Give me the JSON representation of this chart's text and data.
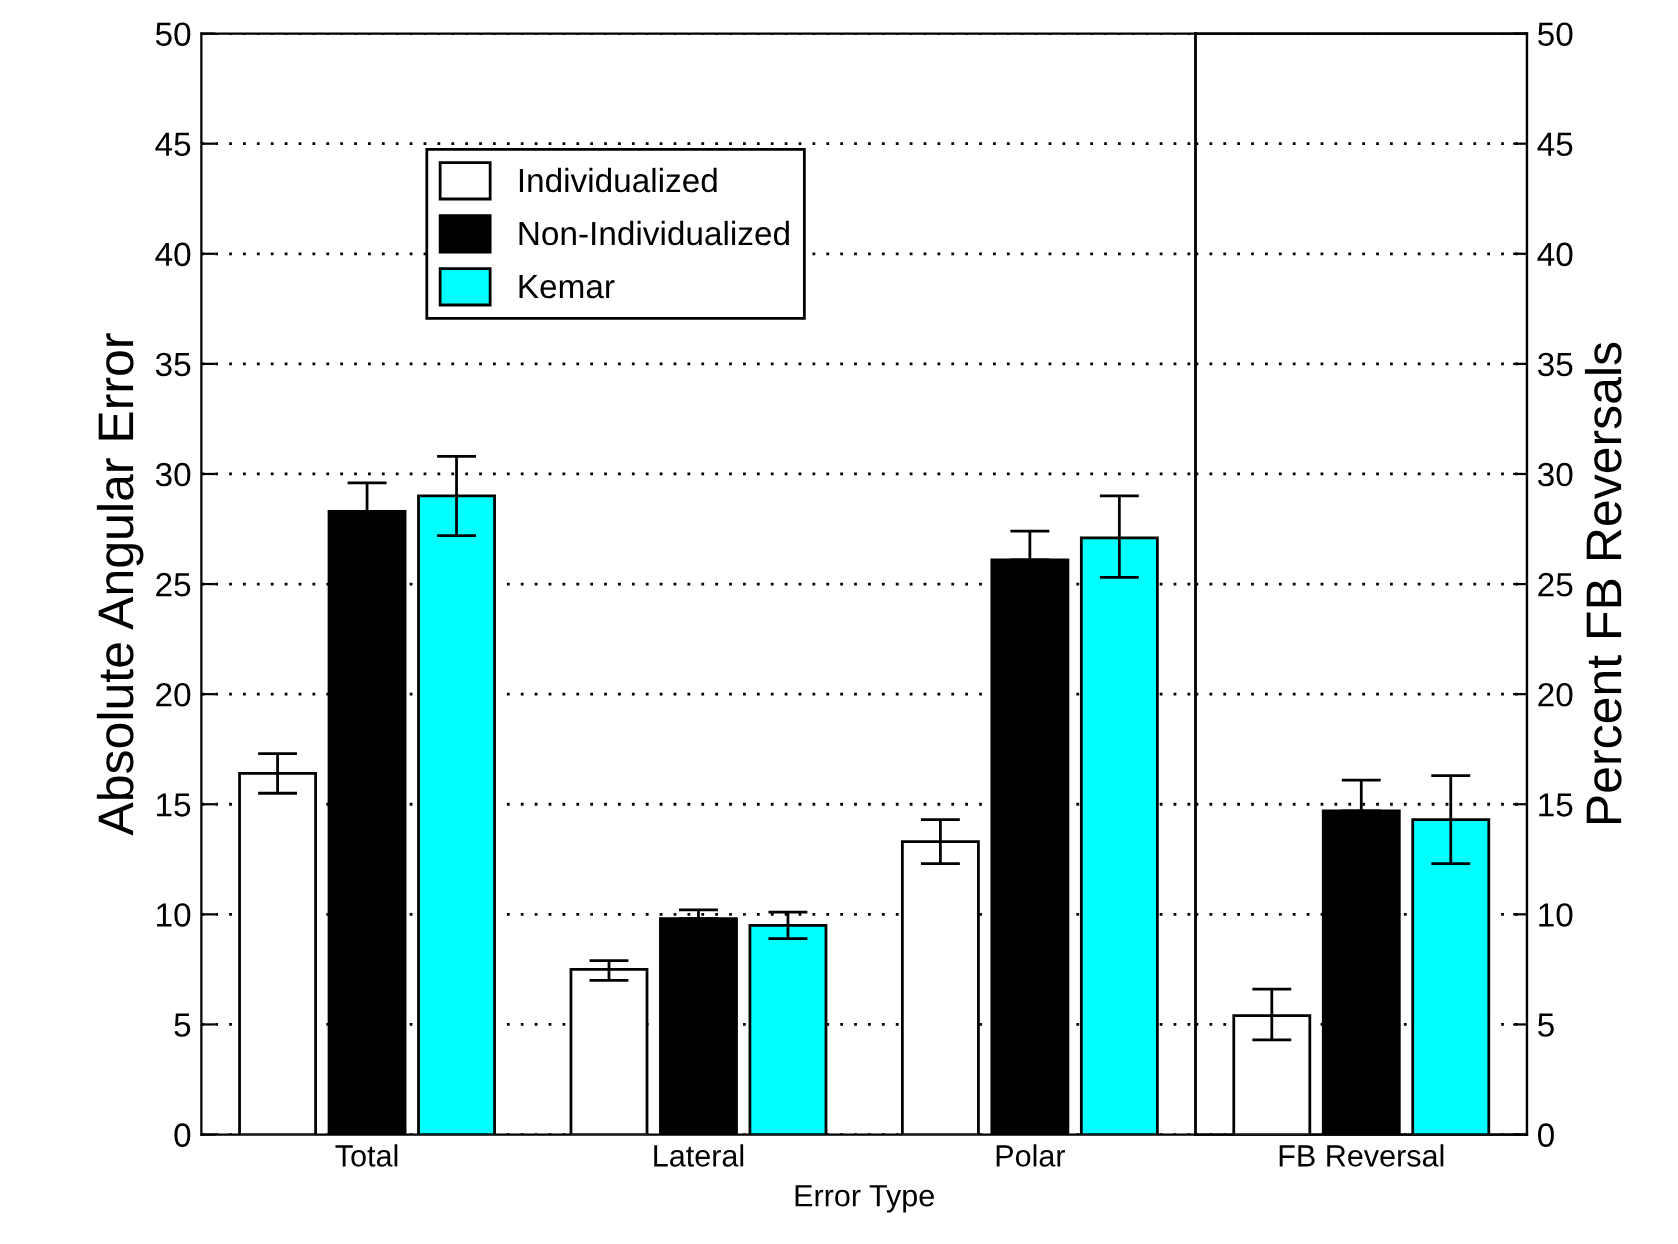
{
  "chart_data": [
    {
      "type": "bar",
      "xlabel": "Error Type",
      "ylabel": "Absolute Angular Error",
      "categories": [
        "Total",
        "Lateral",
        "Polar"
      ],
      "series": [
        {
          "name": "Individualized",
          "color": "#ffffff",
          "values": [
            16.4,
            7.5,
            13.3
          ],
          "errors": [
            [
              15.5,
              17.3
            ],
            [
              7.0,
              7.9
            ],
            [
              12.3,
              14.3
            ]
          ]
        },
        {
          "name": "Non-Individualized",
          "color": "#000000",
          "values": [
            28.3,
            9.8,
            26.1
          ],
          "errors": [
            [
              28.3,
              29.6
            ],
            [
              9.8,
              10.2
            ],
            [
              26.1,
              27.4
            ]
          ]
        },
        {
          "name": "Kemar",
          "color": "#00ffff",
          "values": [
            29.0,
            9.5,
            27.1
          ],
          "errors": [
            [
              27.2,
              30.8
            ],
            [
              8.9,
              10.1
            ],
            [
              25.3,
              29.0
            ]
          ]
        }
      ],
      "ylim": [
        0,
        50
      ],
      "yticks": [
        0,
        5,
        10,
        15,
        20,
        25,
        30,
        35,
        40,
        45,
        50
      ],
      "grid": "y",
      "legend": "top left"
    },
    {
      "type": "bar",
      "y2label": "Percent FB Reversals",
      "categories": [
        "FB Reversal"
      ],
      "series": [
        {
          "color": "#ffffff",
          "axis": "y2",
          "values": [
            5.4
          ],
          "errors": [
            [
              4.3,
              6.6
            ]
          ]
        },
        {
          "color": "#000000",
          "axis": "y2",
          "values": [
            14.7
          ],
          "errors": [
            [
              14.7,
              16.1
            ]
          ]
        },
        {
          "color": "#00ffff",
          "axis": "y2",
          "values": [
            14.3
          ],
          "errors": [
            [
              12.3,
              16.3
            ]
          ]
        }
      ],
      "y2lim": [
        0,
        50
      ],
      "y2ticks": [
        0,
        5,
        10,
        15,
        20,
        25,
        30,
        35,
        40,
        45,
        50
      ],
      "grid": "y"
    }
  ]
}
